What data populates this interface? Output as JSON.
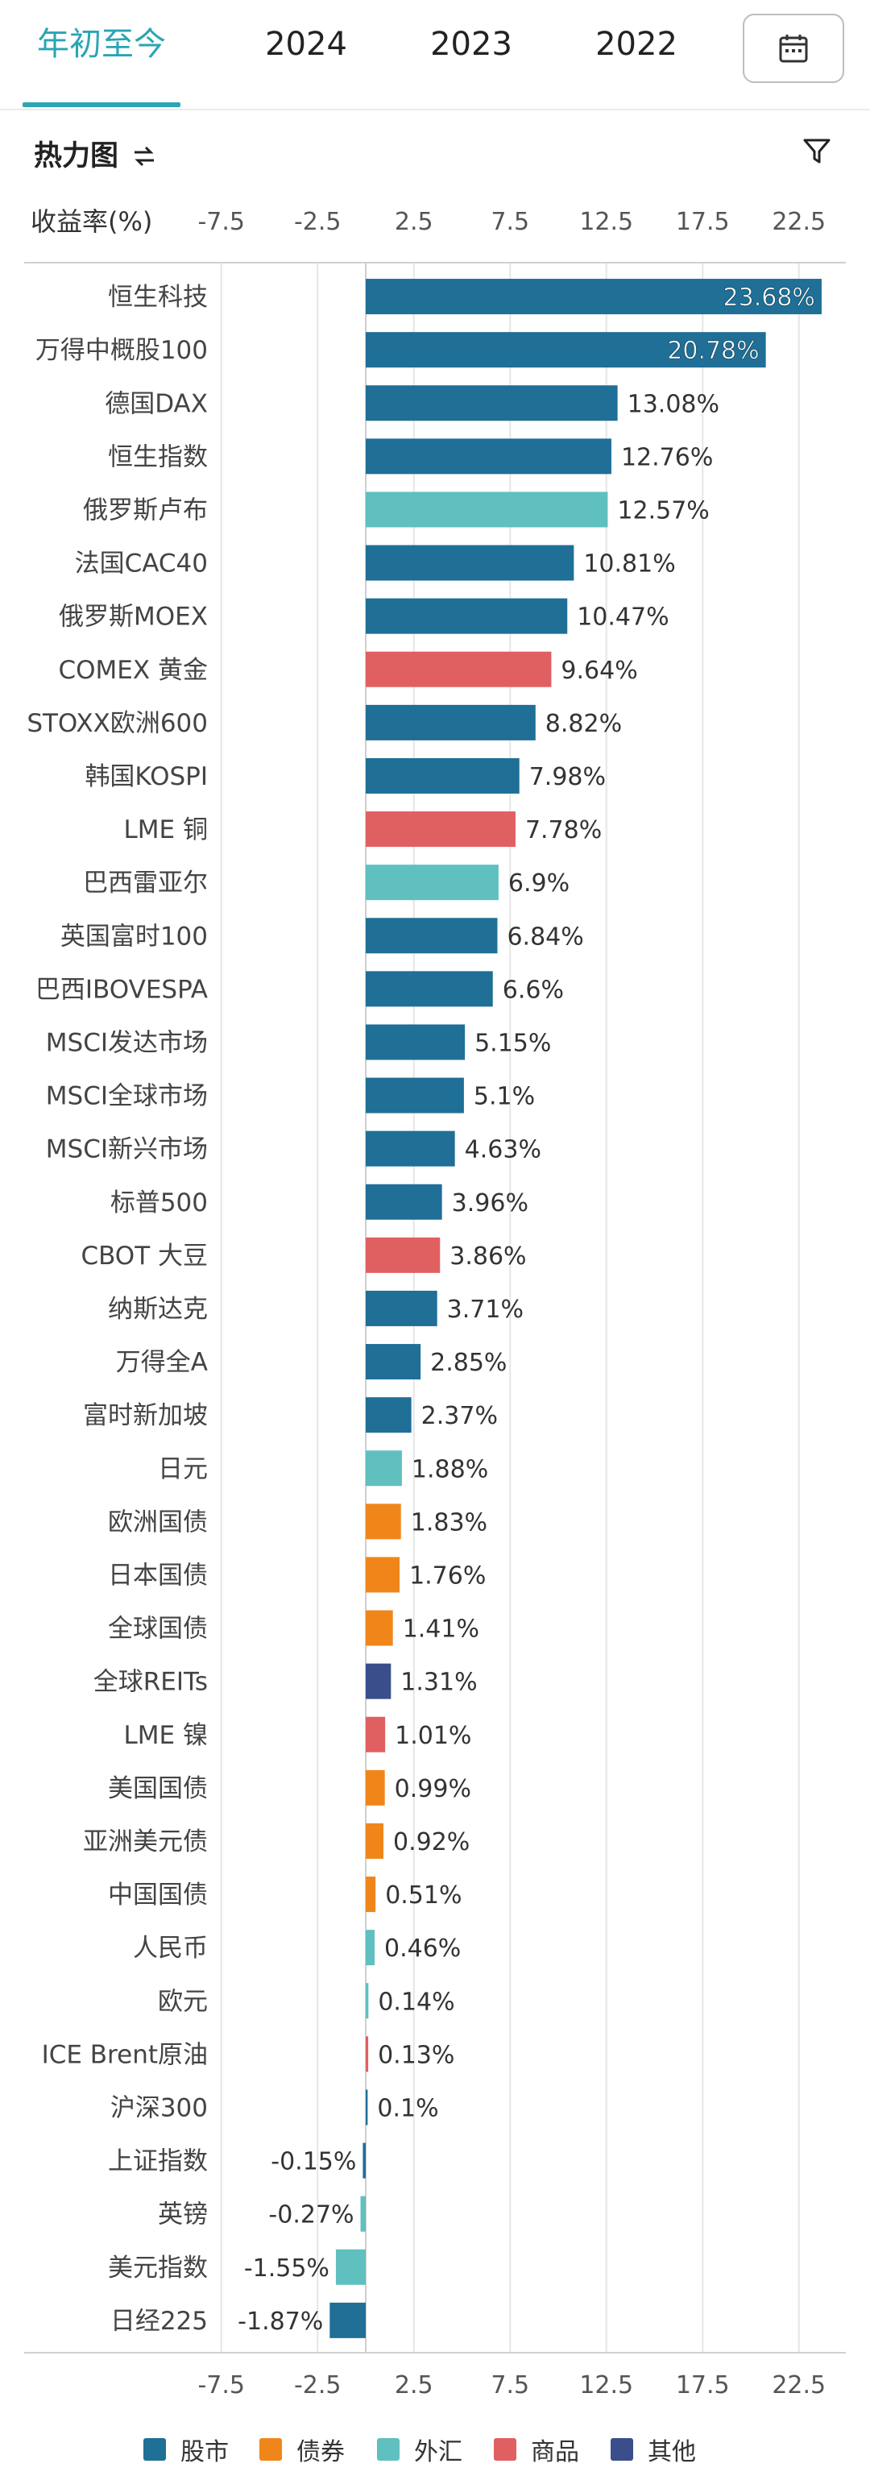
{
  "tabs": [
    {
      "label": "年初至今",
      "active": true
    },
    {
      "label": "2024",
      "active": false
    },
    {
      "label": "2023",
      "active": false
    },
    {
      "label": "2022",
      "active": false
    }
  ],
  "calendar_icon": "calendar-icon",
  "section": {
    "title": "热力图",
    "toggle_icon": "switch-arrows-icon",
    "filter_icon": "filter-icon"
  },
  "colors": {
    "stock": "#1f6f97",
    "bond": "#f0861a",
    "fx": "#5fc0bf",
    "commodity": "#e06062",
    "other": "#3a4e8c",
    "accent": "#2aa5b3"
  },
  "chart_data": {
    "type": "bar",
    "orientation": "horizontal",
    "xlabel": "收益率(%)",
    "xlim": [
      -10,
      25
    ],
    "ticks": [
      "-7.5",
      "-2.5",
      "2.5",
      "7.5",
      "12.5",
      "17.5",
      "22.5"
    ],
    "tick_values": [
      -7.5,
      -2.5,
      2.5,
      7.5,
      12.5,
      17.5,
      22.5
    ],
    "grid": true,
    "legend_position": "bottom",
    "legend": [
      {
        "key": "stock",
        "label": "股市"
      },
      {
        "key": "bond",
        "label": "债券"
      },
      {
        "key": "fx",
        "label": "外汇"
      },
      {
        "key": "commodity",
        "label": "商品"
      },
      {
        "key": "other",
        "label": "其他"
      }
    ],
    "series": [
      {
        "name": "恒生科技",
        "value": 23.68,
        "label": "23.68%",
        "type": "stock"
      },
      {
        "name": "万得中概股100",
        "value": 20.78,
        "label": "20.78%",
        "type": "stock"
      },
      {
        "name": "德国DAX",
        "value": 13.08,
        "label": "13.08%",
        "type": "stock"
      },
      {
        "name": "恒生指数",
        "value": 12.76,
        "label": "12.76%",
        "type": "stock"
      },
      {
        "name": "俄罗斯卢布",
        "value": 12.57,
        "label": "12.57%",
        "type": "fx"
      },
      {
        "name": "法国CAC40",
        "value": 10.81,
        "label": "10.81%",
        "type": "stock"
      },
      {
        "name": "俄罗斯MOEX",
        "value": 10.47,
        "label": "10.47%",
        "type": "stock"
      },
      {
        "name": "COMEX 黄金",
        "value": 9.64,
        "label": "9.64%",
        "type": "commodity"
      },
      {
        "name": "STOXX欧洲600",
        "value": 8.82,
        "label": "8.82%",
        "type": "stock"
      },
      {
        "name": "韩国KOSPI",
        "value": 7.98,
        "label": "7.98%",
        "type": "stock"
      },
      {
        "name": "LME 铜",
        "value": 7.78,
        "label": "7.78%",
        "type": "commodity"
      },
      {
        "name": "巴西雷亚尔",
        "value": 6.9,
        "label": "6.9%",
        "type": "fx"
      },
      {
        "name": "英国富时100",
        "value": 6.84,
        "label": "6.84%",
        "type": "stock"
      },
      {
        "name": "巴西IBOVESPA",
        "value": 6.6,
        "label": "6.6%",
        "type": "stock"
      },
      {
        "name": "MSCI发达市场",
        "value": 5.15,
        "label": "5.15%",
        "type": "stock"
      },
      {
        "name": "MSCI全球市场",
        "value": 5.1,
        "label": "5.1%",
        "type": "stock"
      },
      {
        "name": "MSCI新兴市场",
        "value": 4.63,
        "label": "4.63%",
        "type": "stock"
      },
      {
        "name": "标普500",
        "value": 3.96,
        "label": "3.96%",
        "type": "stock"
      },
      {
        "name": "CBOT 大豆",
        "value": 3.86,
        "label": "3.86%",
        "type": "commodity"
      },
      {
        "name": "纳斯达克",
        "value": 3.71,
        "label": "3.71%",
        "type": "stock"
      },
      {
        "name": "万得全A",
        "value": 2.85,
        "label": "2.85%",
        "type": "stock"
      },
      {
        "name": "富时新加坡",
        "value": 2.37,
        "label": "2.37%",
        "type": "stock"
      },
      {
        "name": "日元",
        "value": 1.88,
        "label": "1.88%",
        "type": "fx"
      },
      {
        "name": "欧洲国债",
        "value": 1.83,
        "label": "1.83%",
        "type": "bond"
      },
      {
        "name": "日本国债",
        "value": 1.76,
        "label": "1.76%",
        "type": "bond"
      },
      {
        "name": "全球国债",
        "value": 1.41,
        "label": "1.41%",
        "type": "bond"
      },
      {
        "name": "全球REITs",
        "value": 1.31,
        "label": "1.31%",
        "type": "other"
      },
      {
        "name": "LME 镍",
        "value": 1.01,
        "label": "1.01%",
        "type": "commodity"
      },
      {
        "name": "美国国债",
        "value": 0.99,
        "label": "0.99%",
        "type": "bond"
      },
      {
        "name": "亚洲美元债",
        "value": 0.92,
        "label": "0.92%",
        "type": "bond"
      },
      {
        "name": "中国国债",
        "value": 0.51,
        "label": "0.51%",
        "type": "bond"
      },
      {
        "name": "人民币",
        "value": 0.46,
        "label": "0.46%",
        "type": "fx"
      },
      {
        "name": "欧元",
        "value": 0.14,
        "label": "0.14%",
        "type": "fx"
      },
      {
        "name": "ICE Brent原油",
        "value": 0.13,
        "label": "0.13%",
        "type": "commodity"
      },
      {
        "name": "沪深300",
        "value": 0.1,
        "label": "0.1%",
        "type": "stock"
      },
      {
        "name": "上证指数",
        "value": -0.15,
        "label": "-0.15%",
        "type": "stock"
      },
      {
        "name": "英镑",
        "value": -0.27,
        "label": "-0.27%",
        "type": "fx"
      },
      {
        "name": "美元指数",
        "value": -1.55,
        "label": "-1.55%",
        "type": "fx"
      },
      {
        "name": "日经225",
        "value": -1.87,
        "label": "-1.87%",
        "type": "stock"
      }
    ]
  }
}
